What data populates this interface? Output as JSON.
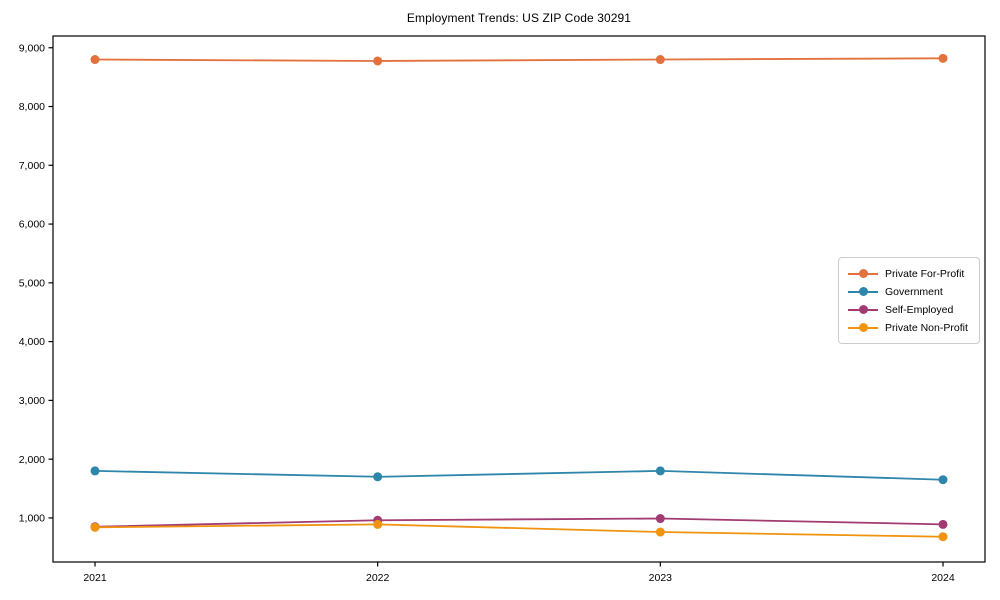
{
  "page": {
    "title": "Employment Trends: US ZIP Code 30291"
  },
  "chart_data": {
    "type": "line",
    "title": "Employment Trends: US ZIP Code 30291",
    "xlabel": "",
    "ylabel": "",
    "categories": [
      "2021",
      "2022",
      "2023",
      "2024"
    ],
    "series": [
      {
        "name": "Private For-Profit",
        "color": "#E2713D",
        "values": [
          8800,
          8775,
          8800,
          8820
        ]
      },
      {
        "name": "Government",
        "color": "#2E86AB",
        "values": [
          1800,
          1700,
          1800,
          1650
        ]
      },
      {
        "name": "Self-Employed",
        "color": "#A23B72",
        "values": [
          850,
          960,
          990,
          890
        ]
      },
      {
        "name": "Private Non-Profit",
        "color": "#F0940F",
        "values": [
          840,
          890,
          760,
          680
        ]
      }
    ],
    "ylim": [
      250,
      9200
    ],
    "yticks": [
      {
        "value": 1000,
        "label": "1,000"
      },
      {
        "value": 2000,
        "label": "2,000"
      },
      {
        "value": 3000,
        "label": "3,000"
      },
      {
        "value": 4000,
        "label": "4,000"
      },
      {
        "value": 5000,
        "label": "5,000"
      },
      {
        "value": 6000,
        "label": "6,000"
      },
      {
        "value": 7000,
        "label": "7,000"
      },
      {
        "value": 8000,
        "label": "8,000"
      },
      {
        "value": 9000,
        "label": "9,000"
      }
    ],
    "grid": false,
    "legend_position": "center-right",
    "axis_color": "#000000",
    "tick_label_color": "#000000",
    "marker_radius": 4.5,
    "line_width": 1.8
  }
}
